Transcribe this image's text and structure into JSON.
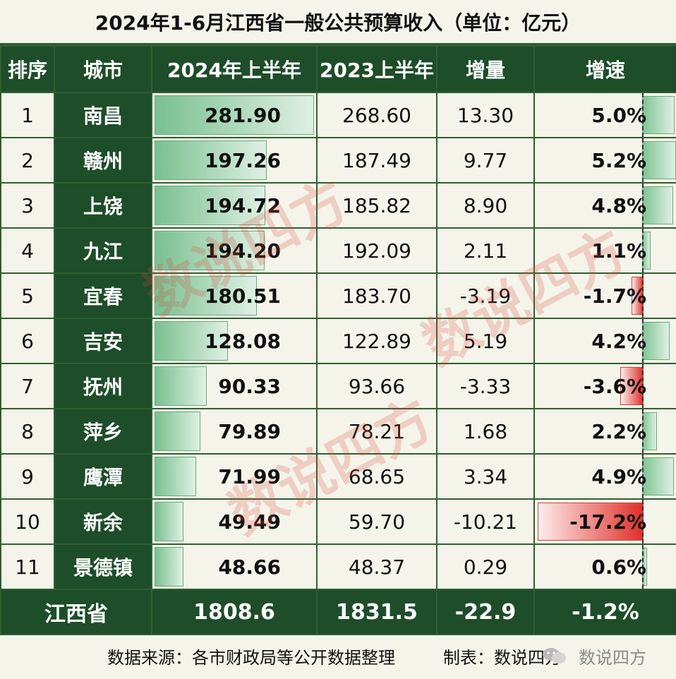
{
  "title": "2024年1-6月江西省一般公共预算收入（单位：亿元）",
  "headers": [
    "排序",
    "城市",
    "2024年上半年",
    "2023上半年",
    "增量",
    "增速"
  ],
  "colors": {
    "header_bg": "#1e4d2a",
    "bar_green": "#79c08f",
    "bar_red": "#e0302a"
  },
  "chart_data": {
    "type": "table",
    "columns": [
      "排序",
      "城市",
      "2024年上半年",
      "2023上半年",
      "增量",
      "增速"
    ],
    "rows": [
      {
        "rank": "1",
        "city": "南昌",
        "y2024": "281.90",
        "y2023": "268.60",
        "delta": "13.30",
        "growth": "5.0%"
      },
      {
        "rank": "2",
        "city": "赣州",
        "y2024": "197.26",
        "y2023": "187.49",
        "delta": "9.77",
        "growth": "5.2%"
      },
      {
        "rank": "3",
        "city": "上饶",
        "y2024": "194.72",
        "y2023": "185.82",
        "delta": "8.90",
        "growth": "4.8%"
      },
      {
        "rank": "4",
        "city": "九江",
        "y2024": "194.20",
        "y2023": "192.09",
        "delta": "2.11",
        "growth": "1.1%"
      },
      {
        "rank": "5",
        "city": "宜春",
        "y2024": "180.51",
        "y2023": "183.70",
        "delta": "-3.19",
        "growth": "-1.7%"
      },
      {
        "rank": "6",
        "city": "吉安",
        "y2024": "128.08",
        "y2023": "122.89",
        "delta": "5.19",
        "growth": "4.2%"
      },
      {
        "rank": "7",
        "city": "抚州",
        "y2024": "90.33",
        "y2023": "93.66",
        "delta": "-3.33",
        "growth": "-3.6%"
      },
      {
        "rank": "8",
        "city": "萍乡",
        "y2024": "79.89",
        "y2023": "78.21",
        "delta": "1.68",
        "growth": "2.2%"
      },
      {
        "rank": "9",
        "city": "鹰潭",
        "y2024": "71.99",
        "y2023": "68.65",
        "delta": "3.34",
        "growth": "4.9%"
      },
      {
        "rank": "10",
        "city": "新余",
        "y2024": "49.49",
        "y2023": "59.70",
        "delta": "-10.21",
        "growth": "-17.2%"
      },
      {
        "rank": "11",
        "city": "景德镇",
        "y2024": "48.66",
        "y2023": "48.37",
        "delta": "0.29",
        "growth": "0.6%"
      }
    ],
    "total": {
      "label": "江西省",
      "y2024": "1808.6",
      "y2023": "1831.5",
      "delta": "-22.9",
      "growth": "-1.2%"
    }
  },
  "footer": {
    "source": "数据来源：各市财政局等公开数据整理",
    "maker": "制表：数说四方",
    "brand": "数说四方",
    "icon": "wechat-icon"
  },
  "watermark": "数说四方"
}
